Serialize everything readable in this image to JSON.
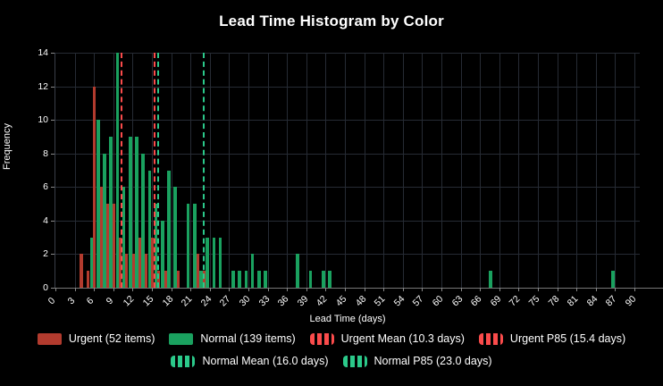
{
  "colors": {
    "background": "#000000",
    "text": "#ffffff",
    "grid": "#262b34",
    "axis": "#777777",
    "urgent_bar": "#b23b2e",
    "normal_bar": "#1aa15f",
    "urgent_line": "#fa4b4b",
    "normal_line": "#2bc98a"
  },
  "chart_data": {
    "type": "bar",
    "title": "Lead Time Histogram by Color",
    "xlabel": "Lead Time (days)",
    "ylabel": "Frequency",
    "xlim": [
      0,
      90
    ],
    "ylim": [
      0,
      14
    ],
    "x_ticks": [
      0,
      3,
      6,
      9,
      12,
      15,
      18,
      21,
      24,
      27,
      30,
      33,
      36,
      39,
      42,
      45,
      48,
      51,
      54,
      57,
      60,
      63,
      66,
      69,
      72,
      75,
      78,
      81,
      84,
      87,
      90
    ],
    "y_ticks": [
      0,
      2,
      4,
      6,
      8,
      10,
      12,
      14
    ],
    "grid": true,
    "legend_position": "bottom",
    "series": [
      {
        "name": "Urgent",
        "color": "#b23b2e",
        "points": [
          [
            4,
            2
          ],
          [
            5,
            1
          ],
          [
            6,
            12
          ],
          [
            7,
            6
          ],
          [
            8,
            5
          ],
          [
            9,
            5
          ],
          [
            10,
            3
          ],
          [
            11,
            2
          ],
          [
            12,
            2
          ],
          [
            13,
            3
          ],
          [
            14,
            2
          ],
          [
            15,
            3
          ],
          [
            16,
            1
          ],
          [
            17,
            1
          ],
          [
            19,
            1
          ],
          [
            22,
            2
          ],
          [
            23,
            1
          ]
        ]
      },
      {
        "name": "Normal",
        "color": "#1aa15f",
        "points": [
          [
            5,
            3
          ],
          [
            6,
            10
          ],
          [
            7,
            8
          ],
          [
            8,
            9
          ],
          [
            9,
            14
          ],
          [
            10,
            6
          ],
          [
            11,
            9
          ],
          [
            12,
            9
          ],
          [
            13,
            8
          ],
          [
            14,
            7
          ],
          [
            15,
            5
          ],
          [
            16,
            4
          ],
          [
            17,
            7
          ],
          [
            18,
            6
          ],
          [
            20,
            5
          ],
          [
            21,
            5
          ],
          [
            22,
            1
          ],
          [
            23,
            3
          ],
          [
            24,
            3
          ],
          [
            25,
            3
          ],
          [
            27,
            1
          ],
          [
            28,
            1
          ],
          [
            29,
            1
          ],
          [
            30,
            2
          ],
          [
            31,
            1
          ],
          [
            32,
            1
          ],
          [
            37,
            2
          ],
          [
            39,
            1
          ],
          [
            41,
            1
          ],
          [
            42,
            1
          ],
          [
            67,
            1
          ],
          [
            86,
            1
          ]
        ]
      }
    ],
    "vlines": [
      {
        "name": "Urgent Mean",
        "x": 10.3,
        "color": "#fa4b4b"
      },
      {
        "name": "Urgent P85",
        "x": 15.4,
        "color": "#fa4b4b"
      },
      {
        "name": "Normal Mean",
        "x": 16.0,
        "color": "#2bc98a"
      },
      {
        "name": "Normal P85",
        "x": 23.0,
        "color": "#2bc98a"
      }
    ]
  },
  "legend": {
    "urgent": "Urgent (52 items)",
    "normal": "Normal (139 items)",
    "urgent_mean": "Urgent Mean (10.3 days)",
    "urgent_p85": "Urgent P85 (15.4 days)",
    "normal_mean": "Normal Mean (16.0 days)",
    "normal_p85": "Normal P85 (23.0 days)"
  }
}
